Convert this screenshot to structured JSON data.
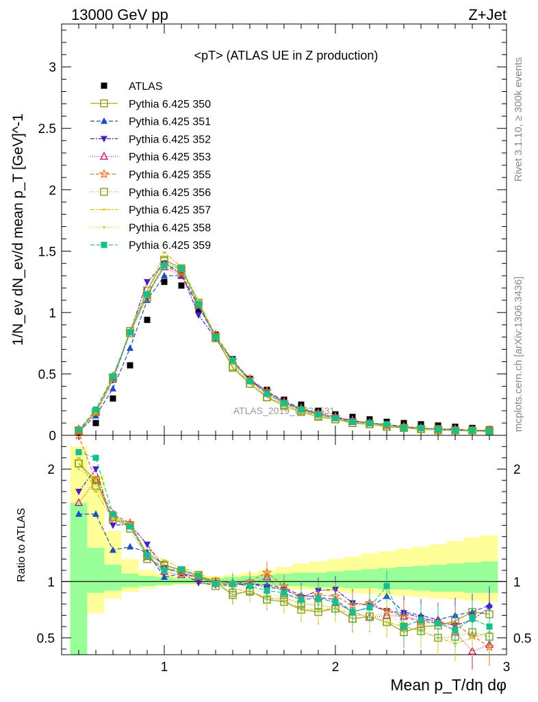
{
  "header": {
    "left": "13000 GeV pp",
    "right": "Z+Jet"
  },
  "side": {
    "rivet": "Rivet 3.1.10, ≥ 300k events",
    "mcplots": "mcplots.cern.ch [arXiv:1306.3436]"
  },
  "watermark": "ATLAS_2019_I1736531",
  "colors": {
    "atlas": "#000000",
    "band_inner": "#99ff99",
    "band_outer": "#ffff99"
  },
  "chart_data": [
    {
      "type": "line",
      "title": "<pT> (ATLAS UE in Z production)",
      "ylabel": "1/N_ev dN_ev/d mean p_T [GeV]^-1",
      "xlim": [
        0.4,
        3.0
      ],
      "ylim": [
        0,
        3.35
      ],
      "yticks": [
        0,
        0.5,
        1,
        1.5,
        2,
        2.5,
        3
      ],
      "ytick_labels": [
        "0",
        "0.5",
        "1",
        "1.5",
        "2",
        "2.5",
        "3"
      ],
      "legend_position": "top-left",
      "x": [
        0.5,
        0.6,
        0.7,
        0.8,
        0.9,
        1.0,
        1.1,
        1.2,
        1.3,
        1.4,
        1.5,
        1.6,
        1.7,
        1.8,
        1.9,
        2.0,
        2.1,
        2.2,
        2.3,
        2.4,
        2.5,
        2.6,
        2.7,
        2.8,
        2.9
      ],
      "series": [
        {
          "name": "ATLAS",
          "color": "#000000",
          "marker": "square-filled",
          "values": [
            0.02,
            0.1,
            0.3,
            0.57,
            0.94,
            1.25,
            1.22,
            1.02,
            0.82,
            0.62,
            0.46,
            0.37,
            0.29,
            0.25,
            0.2,
            0.17,
            0.15,
            0.13,
            0.11,
            0.1,
            0.09,
            0.08,
            0.07,
            0.06,
            0.05
          ]
        },
        {
          "name": "Pythia 6.425 350",
          "color": "#9a9a20",
          "marker": "square-open",
          "dash": "",
          "values": [
            0.04,
            0.19,
            0.46,
            0.85,
            1.18,
            1.43,
            1.36,
            1.08,
            0.8,
            0.55,
            0.42,
            0.31,
            0.24,
            0.19,
            0.15,
            0.13,
            0.1,
            0.09,
            0.07,
            0.06,
            0.05,
            0.05,
            0.04,
            0.04,
            0.04
          ]
        },
        {
          "name": "Pythia 6.425 351",
          "color": "#1d4fbf",
          "marker": "triangle-up-filled",
          "dash": "6,3",
          "values": [
            0.03,
            0.16,
            0.38,
            0.71,
            1.1,
            1.3,
            1.3,
            1.05,
            0.8,
            0.6,
            0.45,
            0.36,
            0.28,
            0.22,
            0.17,
            0.14,
            0.12,
            0.1,
            0.09,
            0.07,
            0.06,
            0.05,
            0.05,
            0.04,
            0.04
          ]
        },
        {
          "name": "Pythia 6.425 352",
          "color": "#4b1fbf",
          "marker": "triangle-down-filled",
          "dash": "6,2,2,2",
          "values": [
            0.04,
            0.18,
            0.45,
            0.84,
            1.25,
            1.4,
            1.32,
            0.98,
            0.79,
            0.6,
            0.45,
            0.35,
            0.27,
            0.21,
            0.18,
            0.15,
            0.12,
            0.1,
            0.08,
            0.07,
            0.06,
            0.05,
            0.04,
            0.04,
            0.04
          ]
        },
        {
          "name": "Pythia 6.425 353",
          "color": "#c0166e",
          "marker": "triangle-up-open",
          "dash": "1,2",
          "values": [
            0.03,
            0.19,
            0.47,
            0.84,
            1.14,
            1.37,
            1.3,
            1.06,
            0.8,
            0.61,
            0.45,
            0.34,
            0.26,
            0.21,
            0.17,
            0.14,
            0.11,
            0.1,
            0.08,
            0.06,
            0.06,
            0.05,
            0.04,
            0.04,
            0.03
          ]
        },
        {
          "name": "Pythia 6.425 355",
          "color": "#ee6a1c",
          "marker": "star-open",
          "dash": "5,3",
          "values": [
            0.05,
            0.19,
            0.48,
            0.84,
            1.14,
            1.38,
            1.32,
            1.06,
            0.82,
            0.61,
            0.46,
            0.36,
            0.27,
            0.22,
            0.18,
            0.15,
            0.12,
            0.1,
            0.08,
            0.07,
            0.06,
            0.05,
            0.05,
            0.04,
            0.04
          ]
        },
        {
          "name": "Pythia 6.425 356",
          "color": "#8aa020",
          "marker": "square-open",
          "dash": "1,2",
          "values": [
            0.04,
            0.19,
            0.47,
            0.83,
            1.12,
            1.42,
            1.34,
            1.08,
            0.79,
            0.56,
            0.42,
            0.31,
            0.25,
            0.2,
            0.16,
            0.13,
            0.1,
            0.09,
            0.07,
            0.06,
            0.05,
            0.04,
            0.04,
            0.04,
            0.03
          ]
        },
        {
          "name": "Pythia 6.425 357",
          "color": "#d9c21a",
          "marker": "tick",
          "dash": "6,2,2,2",
          "values": [
            0.04,
            0.18,
            0.46,
            0.86,
            1.17,
            1.49,
            1.37,
            1.1,
            0.81,
            0.58,
            0.42,
            0.32,
            0.24,
            0.19,
            0.15,
            0.13,
            0.11,
            0.09,
            0.07,
            0.06,
            0.05,
            0.04,
            0.04,
            0.03,
            0.03
          ]
        },
        {
          "name": "Pythia 6.425 358",
          "color": "#b3dd3b",
          "marker": "dot",
          "dash": "1,2",
          "values": [
            0.04,
            0.19,
            0.47,
            0.84,
            1.16,
            1.4,
            1.35,
            1.09,
            0.8,
            0.59,
            0.43,
            0.33,
            0.25,
            0.2,
            0.16,
            0.13,
            0.11,
            0.09,
            0.08,
            0.06,
            0.05,
            0.05,
            0.04,
            0.04,
            0.03
          ]
        },
        {
          "name": "Pythia 6.425 359",
          "color": "#15bf8f",
          "marker": "square-filled",
          "dash": "6,3",
          "values": [
            0.04,
            0.21,
            0.48,
            0.84,
            1.15,
            1.38,
            1.36,
            1.07,
            0.8,
            0.61,
            0.44,
            0.34,
            0.26,
            0.21,
            0.17,
            0.14,
            0.11,
            0.1,
            0.09,
            0.06,
            0.06,
            0.05,
            0.04,
            0.04,
            0.03
          ]
        }
      ]
    },
    {
      "type": "line",
      "title": "",
      "xlabel": "Mean p_T/dη dφ",
      "ylabel": "Ratio to ATLAS",
      "xlim": [
        0.4,
        3.0
      ],
      "ylim": [
        0.35,
        2.3
      ],
      "xticks": [
        1,
        2,
        3
      ],
      "xtick_labels": [
        "1",
        "2",
        "3"
      ],
      "yticks": [
        0.5,
        1,
        2
      ],
      "ytick_labels": [
        "0.5",
        "1",
        "2"
      ],
      "reference_line": 1,
      "band_edges": [
        0.45,
        0.55,
        0.65,
        0.75,
        0.85,
        0.95,
        1.05,
        1.15,
        1.25,
        1.35,
        1.45,
        1.55,
        1.65,
        1.75,
        1.85,
        1.95,
        2.05,
        2.15,
        2.25,
        2.35,
        2.45,
        2.55,
        2.65,
        2.75,
        2.85,
        2.95
      ],
      "band_inner": {
        "low": [
          0.3,
          0.9,
          0.92,
          0.95,
          0.96,
          0.97,
          0.98,
          0.98,
          0.98,
          0.98,
          0.97,
          0.97,
          0.96,
          0.96,
          0.95,
          0.95,
          0.94,
          0.94,
          0.93,
          0.93,
          0.92,
          0.91,
          0.91,
          0.9,
          0.9
        ],
        "high": [
          1.7,
          1.3,
          1.15,
          1.07,
          1.05,
          1.04,
          1.03,
          1.03,
          1.03,
          1.04,
          1.05,
          1.06,
          1.07,
          1.08,
          1.08,
          1.09,
          1.1,
          1.11,
          1.12,
          1.13,
          1.14,
          1.15,
          1.16,
          1.17,
          1.18
        ]
      },
      "band_outer": {
        "low": [
          0.3,
          0.72,
          0.85,
          0.91,
          0.94,
          0.96,
          0.97,
          0.97,
          0.97,
          0.97,
          0.96,
          0.95,
          0.94,
          0.93,
          0.92,
          0.91,
          0.9,
          0.89,
          0.88,
          0.87,
          0.86,
          0.85,
          0.84,
          0.83,
          0.82
        ],
        "high": [
          2.2,
          1.95,
          1.45,
          1.2,
          1.1,
          1.07,
          1.05,
          1.05,
          1.05,
          1.06,
          1.08,
          1.1,
          1.13,
          1.16,
          1.18,
          1.2,
          1.22,
          1.25,
          1.27,
          1.29,
          1.31,
          1.33,
          1.36,
          1.39,
          1.41
        ]
      },
      "x": [
        0.5,
        0.6,
        0.7,
        0.8,
        0.9,
        1.0,
        1.1,
        1.2,
        1.3,
        1.4,
        1.5,
        1.6,
        1.7,
        1.8,
        1.9,
        2.0,
        2.1,
        2.2,
        2.3,
        2.4,
        2.5,
        2.6,
        2.7,
        2.8,
        2.9
      ],
      "series": [
        {
          "name": "Pythia 6.425 350",
          "color": "#9a9a20",
          "marker": "square-open",
          "dash": "",
          "values": [
            2.05,
            1.9,
            1.55,
            1.5,
            1.25,
            1.15,
            1.1,
            1.05,
            1.0,
            0.88,
            0.92,
            0.84,
            0.82,
            0.75,
            0.73,
            0.76,
            0.67,
            0.69,
            0.64,
            0.55,
            0.6,
            0.61,
            0.65,
            0.73,
            0.71
          ]
        },
        {
          "name": "Pythia 6.425 351",
          "color": "#1d4fbf",
          "marker": "triangle-up-filled",
          "dash": "6,3",
          "values": [
            1.6,
            1.6,
            1.28,
            1.31,
            1.26,
            1.04,
            1.07,
            1.04,
            1.0,
            0.99,
            0.98,
            0.97,
            0.94,
            0.88,
            0.86,
            0.84,
            0.73,
            0.77,
            0.87,
            0.73,
            0.7,
            0.66,
            0.7,
            0.73,
            0.79
          ]
        },
        {
          "name": "Pythia 6.425 352",
          "color": "#4b1fbf",
          "marker": "triangle-down-filled",
          "dash": "6,2,2,2",
          "values": [
            1.8,
            2.0,
            1.5,
            1.51,
            1.33,
            1.12,
            1.08,
            0.99,
            0.97,
            0.97,
            0.98,
            0.95,
            0.93,
            0.86,
            0.92,
            0.93,
            0.81,
            0.79,
            0.74,
            0.72,
            0.68,
            0.64,
            0.61,
            0.66,
            0.77
          ]
        },
        {
          "name": "Pythia 6.425 353",
          "color": "#c0166e",
          "marker": "triangle-up-open",
          "dash": "1,2",
          "values": [
            1.7,
            1.9,
            1.57,
            1.52,
            1.22,
            1.09,
            1.06,
            1.04,
            0.98,
            0.98,
            0.97,
            1.04,
            0.89,
            0.84,
            0.86,
            0.81,
            0.73,
            0.68,
            0.7,
            0.69,
            0.66,
            0.66,
            0.55,
            0.38,
            0.44
          ]
        },
        {
          "name": "Pythia 6.425 355",
          "color": "#ee6a1c",
          "marker": "star-open",
          "dash": "5,3",
          "values": [
            2.3,
            1.9,
            1.6,
            1.52,
            1.22,
            1.11,
            1.08,
            1.04,
            1.0,
            0.99,
            1.0,
            1.08,
            0.96,
            0.86,
            0.88,
            0.87,
            0.79,
            0.81,
            0.74,
            0.69,
            0.64,
            0.63,
            0.62,
            0.52,
            0.42
          ]
        },
        {
          "name": "Pythia 6.425 356",
          "color": "#8aa020",
          "marker": "square-open",
          "dash": "1,2",
          "values": [
            2.05,
            1.85,
            1.57,
            1.47,
            1.2,
            1.14,
            1.1,
            1.06,
            0.96,
            0.9,
            0.91,
            0.84,
            0.86,
            0.8,
            0.79,
            0.76,
            0.67,
            0.69,
            0.64,
            0.6,
            0.56,
            0.5,
            0.51,
            0.55,
            0.51
          ]
        },
        {
          "name": "Pythia 6.425 357",
          "color": "#d9c21a",
          "marker": "tick",
          "dash": "6,2,2,2",
          "values": [
            2.1,
            1.8,
            1.55,
            1.52,
            1.25,
            1.19,
            1.12,
            1.08,
            0.99,
            0.94,
            0.91,
            0.86,
            0.83,
            0.76,
            0.75,
            0.76,
            0.71,
            0.69,
            0.64,
            0.6,
            0.56,
            0.5,
            0.45,
            0.5,
            0.55
          ]
        },
        {
          "name": "Pythia 6.425 358",
          "color": "#b3dd3b",
          "marker": "dot",
          "dash": "1,2",
          "values": [
            2.0,
            1.9,
            1.57,
            1.49,
            1.24,
            1.12,
            1.11,
            1.06,
            0.98,
            0.95,
            0.94,
            0.89,
            0.86,
            0.8,
            0.8,
            0.77,
            0.73,
            0.69,
            0.73,
            0.6,
            0.56,
            0.63,
            0.57,
            0.67,
            0.6
          ]
        },
        {
          "name": "Pythia 6.425 359",
          "color": "#15bf8f",
          "marker": "square-filled",
          "dash": "6,3",
          "values": [
            2.15,
            2.1,
            1.6,
            1.49,
            1.23,
            1.1,
            1.11,
            1.05,
            0.98,
            0.98,
            0.96,
            0.92,
            0.9,
            0.84,
            0.85,
            0.82,
            0.73,
            0.77,
            0.96,
            0.6,
            0.66,
            0.63,
            0.57,
            0.67,
            0.6
          ]
        }
      ]
    }
  ]
}
